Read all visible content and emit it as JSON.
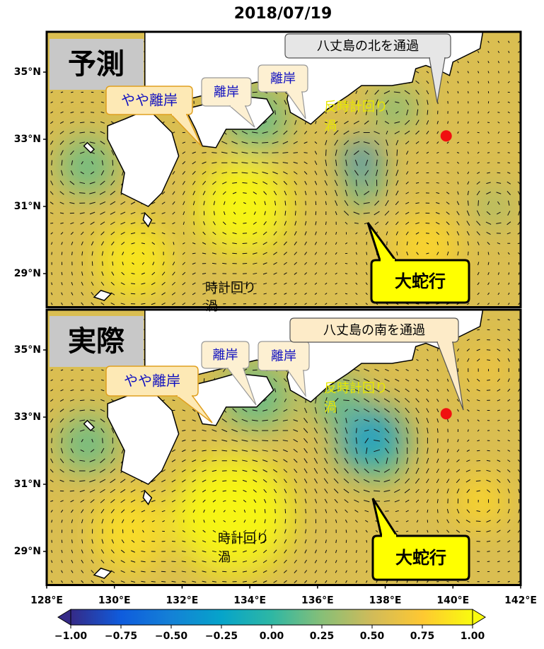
{
  "title": "2018/07/19",
  "x_axis": {
    "lim": [
      128,
      142
    ],
    "ticks": [
      {
        "value": 128,
        "label": "128°E"
      },
      {
        "value": 130,
        "label": "130°E"
      },
      {
        "value": 132,
        "label": "132°E"
      },
      {
        "value": 134,
        "label": "134°E"
      },
      {
        "value": 136,
        "label": "136°E"
      },
      {
        "value": 138,
        "label": "138°E"
      },
      {
        "value": 140,
        "label": "140°E"
      },
      {
        "value": 142,
        "label": "142°E"
      }
    ]
  },
  "y_axis": {
    "lim": [
      28,
      36.2
    ],
    "ticks": [
      {
        "value": 29,
        "label": "29°N"
      },
      {
        "value": 31,
        "label": "31°N"
      },
      {
        "value": 33,
        "label": "33°N"
      },
      {
        "value": 35,
        "label": "35°N"
      }
    ]
  },
  "panels": [
    {
      "label": "予測",
      "slight_offshore": "やや離岸",
      "offshore": [
        "離岸",
        "離岸"
      ],
      "passage": "八丈島の北を通過",
      "ccw_eddy": [
        "反時計回り",
        "渦"
      ],
      "cw_eddy": [
        "時計回り",
        "渦"
      ],
      "meander": "大蛇行"
    },
    {
      "label": "実際",
      "slight_offshore": "やや離岸",
      "offshore": [
        "離岸",
        "離岸"
      ],
      "passage": "八丈島の南を通過",
      "ccw_eddy": [
        "反時計回り",
        "渦"
      ],
      "cw_eddy": [
        "時計回り",
        "渦"
      ],
      "meander": "大蛇行"
    }
  ],
  "colorbar": {
    "lim": [
      -1,
      1
    ],
    "colormap": [
      "#352a87",
      "#0f5cdd",
      "#1481d6",
      "#06a4ca",
      "#2eb7a4",
      "#87bf77",
      "#d1bb59",
      "#fec832",
      "#f9fb0e"
    ],
    "ticks": [
      {
        "value": -1,
        "label": "−1.00"
      },
      {
        "value": -0.75,
        "label": "−0.75"
      },
      {
        "value": -0.5,
        "label": "−0.50"
      },
      {
        "value": -0.25,
        "label": "−0.25"
      },
      {
        "value": 0,
        "label": "0.00"
      },
      {
        "value": 0.25,
        "label": "0.25"
      },
      {
        "value": 0.5,
        "label": "0.50"
      },
      {
        "value": 0.75,
        "label": "0.75"
      },
      {
        "value": 1,
        "label": "1.00"
      }
    ]
  }
}
